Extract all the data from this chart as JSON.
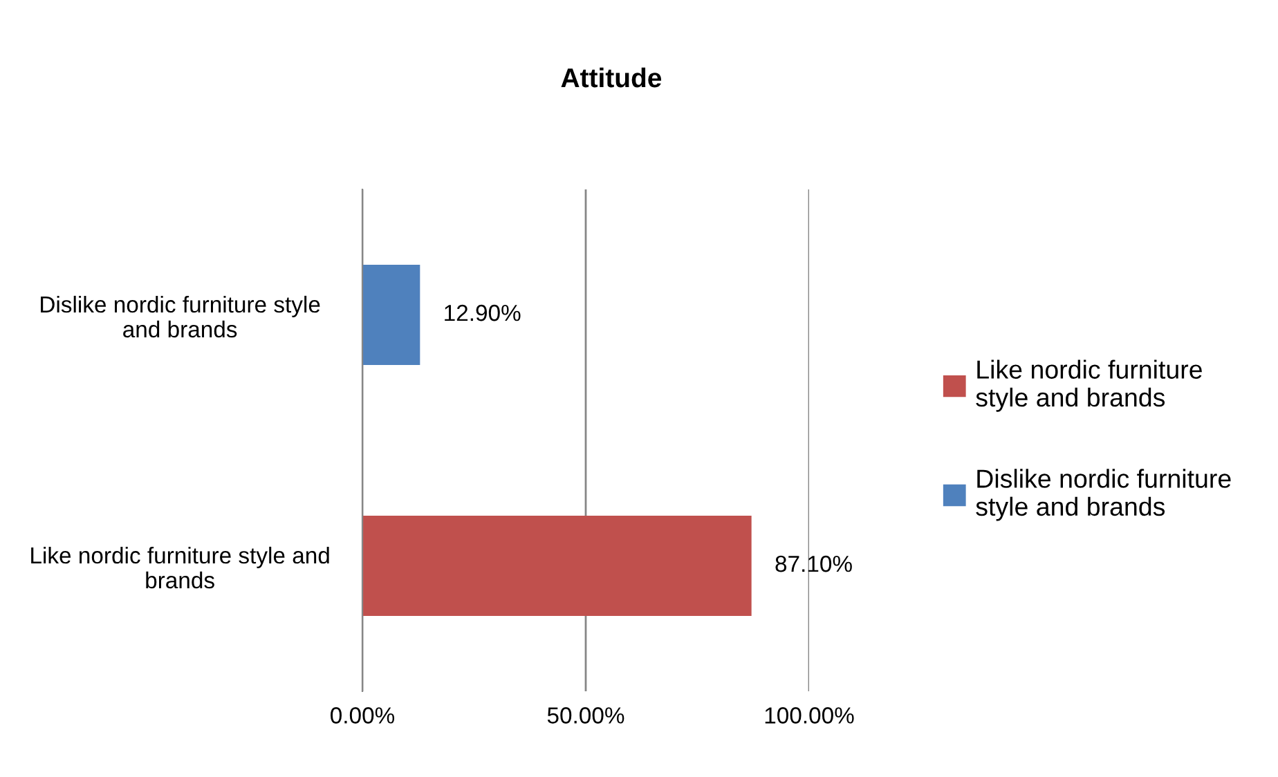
{
  "chart_data": {
    "type": "bar",
    "orientation": "horizontal",
    "title": "Attitude",
    "categories": [
      "Dislike nordic furniture style and brands",
      "Like nordic furniture style and brands"
    ],
    "series": [
      {
        "name": "Like nordic furniture style and brands",
        "color": "#c0504d",
        "values": [
          null,
          87.1
        ],
        "value_labels": [
          null,
          "87.10%"
        ]
      },
      {
        "name": "Dislike nordic furniture style and brands",
        "color": "#4f81bd",
        "values": [
          12.9,
          null
        ],
        "value_labels": [
          "12.90%",
          null
        ]
      }
    ],
    "xlim": [
      0,
      100
    ],
    "xticks": [
      {
        "value": 0,
        "label": "0.00%"
      },
      {
        "value": 50,
        "label": "50.00%"
      },
      {
        "value": 100,
        "label": "100.00%"
      }
    ],
    "grid": "x",
    "legend": "right"
  }
}
